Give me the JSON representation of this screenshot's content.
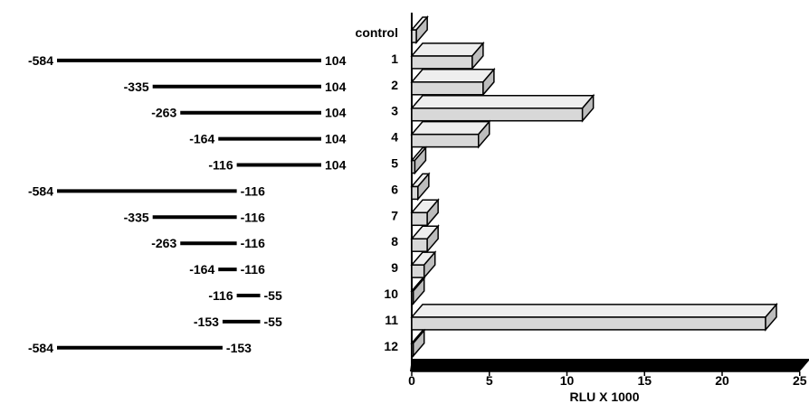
{
  "chart_data": {
    "type": "bar",
    "orientation": "horizontal",
    "style": "3d",
    "categories": [
      "control",
      "1",
      "2",
      "3",
      "4",
      "5",
      "6",
      "7",
      "8",
      "9",
      "10",
      "11",
      "12"
    ],
    "values": [
      0.3,
      3.9,
      4.6,
      11.0,
      4.3,
      0.2,
      0.4,
      1.0,
      1.0,
      0.8,
      0.1,
      22.8,
      0.1
    ],
    "xlabel": "RLU X 1000",
    "xlim": [
      0,
      25
    ],
    "xticks": [
      "0",
      "5",
      "10",
      "15",
      "20",
      "25"
    ],
    "grid": false,
    "bar_color": "#d8d8d8",
    "floor_color": "#000000"
  },
  "constructs": [
    {
      "id": "control"
    },
    {
      "id": "1",
      "start": "-584",
      "end": "104",
      "start_bp": -584,
      "end_bp": 104
    },
    {
      "id": "2",
      "start": "-335",
      "end": "104",
      "start_bp": -335,
      "end_bp": 104
    },
    {
      "id": "3",
      "start": "-263",
      "end": "104",
      "start_bp": -263,
      "end_bp": 104
    },
    {
      "id": "4",
      "start": "-164",
      "end": "104",
      "start_bp": -164,
      "end_bp": 104
    },
    {
      "id": "5",
      "start": "-116",
      "end": "104",
      "start_bp": -116,
      "end_bp": 104
    },
    {
      "id": "6",
      "start": "-584",
      "end": "-116",
      "start_bp": -584,
      "end_bp": -116
    },
    {
      "id": "7",
      "start": "-335",
      "end": "-116",
      "start_bp": -335,
      "end_bp": -116
    },
    {
      "id": "8",
      "start": "-263",
      "end": "-116",
      "start_bp": -263,
      "end_bp": -116
    },
    {
      "id": "9",
      "start": "-164",
      "end": "-116",
      "start_bp": -164,
      "end_bp": -116
    },
    {
      "id": "10",
      "start": "-116",
      "end": "-55",
      "start_bp": -116,
      "end_bp": -55
    },
    {
      "id": "11",
      "start": "-153",
      "end": "-55",
      "start_bp": -153,
      "end_bp": -55
    },
    {
      "id": "12",
      "start": "-584",
      "end": "-153",
      "start_bp": -584,
      "end_bp": -153
    }
  ]
}
